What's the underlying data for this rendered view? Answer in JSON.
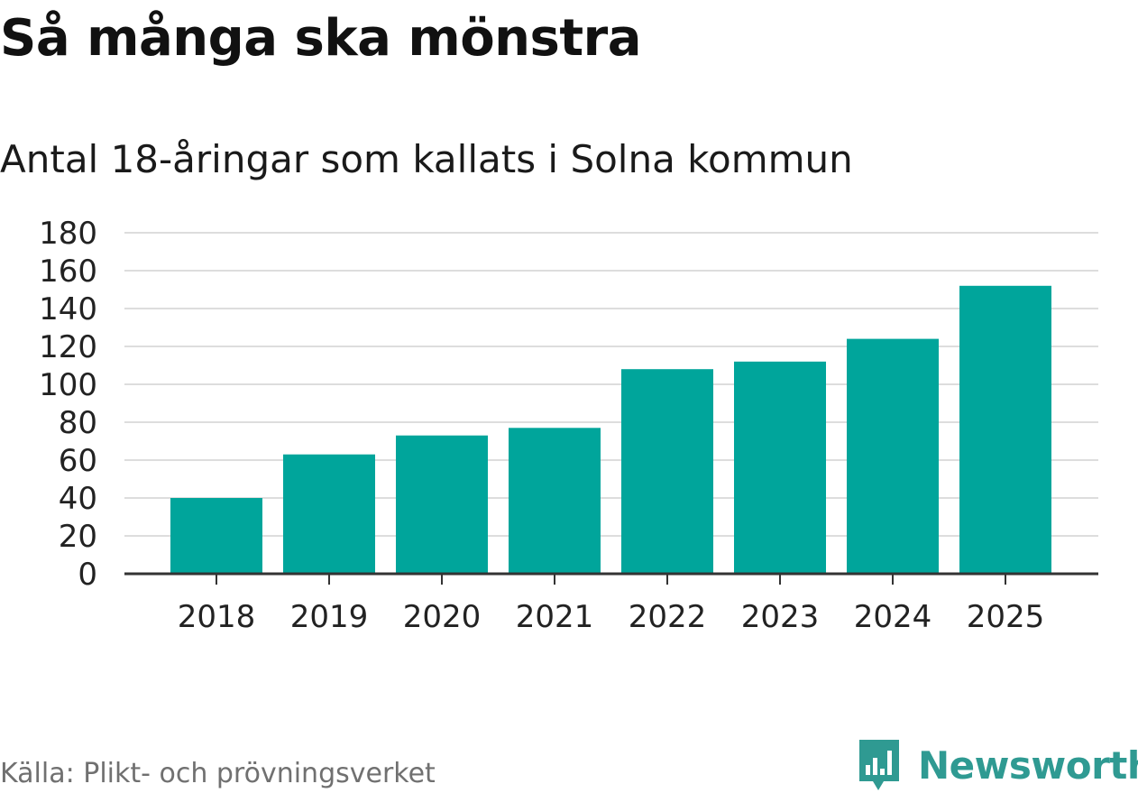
{
  "header": {
    "title": "Så många ska mönstra",
    "subtitle": "Antal 18-åringar som kallats i Solna kommun"
  },
  "footer": {
    "source": "Källa: Plikt- och prövningsverket",
    "brand": "Newsworthy",
    "brand_icon": "bar-chart-speech-bubble-icon"
  },
  "colors": {
    "bar": "#00a59b",
    "grid": "#dddddd",
    "axis": "#333333",
    "text": "#222222",
    "brand": "#2f9a92"
  },
  "chart_data": {
    "type": "bar",
    "title": "Så många ska mönstra",
    "subtitle": "Antal 18-åringar som kallats i Solna kommun",
    "categories": [
      "2018",
      "2019",
      "2020",
      "2021",
      "2022",
      "2023",
      "2024",
      "2025"
    ],
    "values": [
      40,
      63,
      73,
      77,
      108,
      112,
      124,
      152
    ],
    "ylim": [
      0,
      180
    ],
    "yticks": [
      0,
      20,
      40,
      60,
      80,
      100,
      120,
      140,
      160,
      180
    ],
    "xlabel": "",
    "ylabel": "",
    "grid": true,
    "legend": "none"
  }
}
